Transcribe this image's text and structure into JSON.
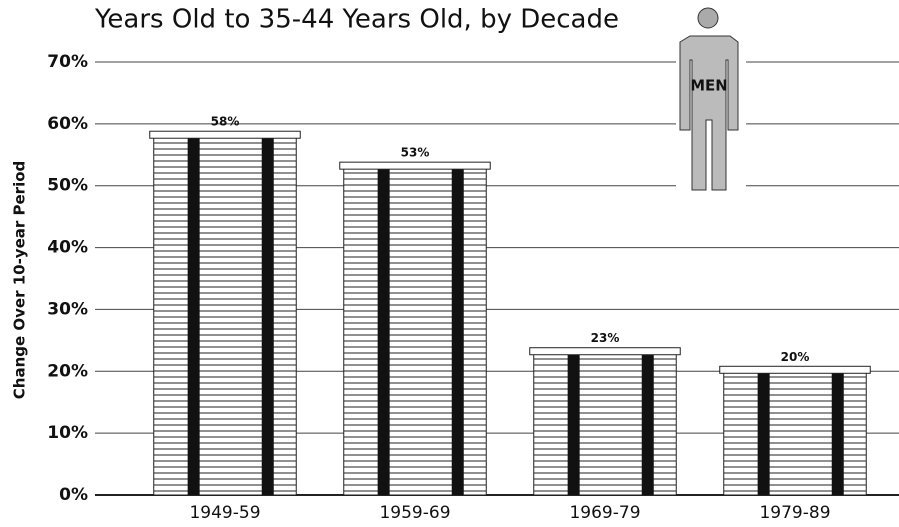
{
  "chart_data": {
    "type": "bar",
    "title": "Years Old to 35-44 Years Old, by Decade",
    "y_label": "Change Over 10-year Period",
    "icon_label": "MEN",
    "categories": [
      "1949-59",
      "1959-69",
      "1969-79",
      "1979-89"
    ],
    "values": [
      58,
      53,
      23,
      20
    ],
    "value_labels": [
      "58%",
      "53%",
      "23%",
      "20%"
    ],
    "color": "#ffffff",
    "ylim": [
      0,
      70
    ],
    "yticks": [
      {
        "value": 0,
        "label": "0%"
      },
      {
        "value": 10,
        "label": "10%"
      },
      {
        "value": 20,
        "label": "20%"
      },
      {
        "value": 30,
        "label": "30%"
      },
      {
        "value": 40,
        "label": "40%"
      },
      {
        "value": 50,
        "label": "50%"
      },
      {
        "value": 60,
        "label": "60%"
      },
      {
        "value": 70,
        "label": "70%"
      }
    ],
    "grid": true
  }
}
